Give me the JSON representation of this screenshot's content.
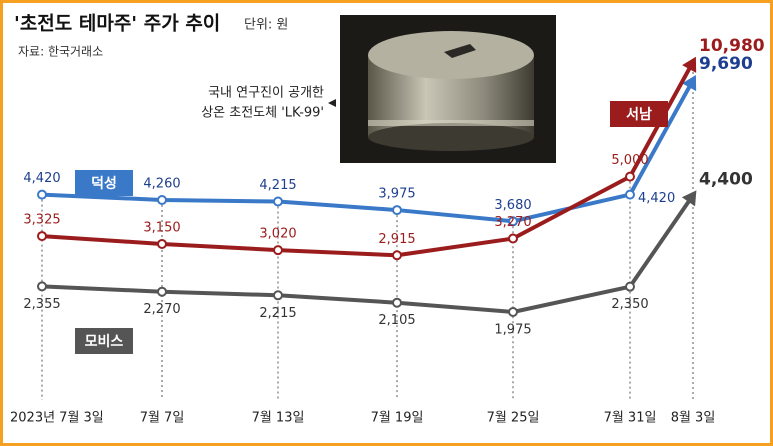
{
  "chart_data": {
    "type": "line",
    "title": "'초전도 테마주' 주가 추이",
    "unit": "단위: 원",
    "source": "자료: 한국거래소",
    "annotation": [
      "국내 연구진이 공개한",
      "상온 초전도체 'LK-99'"
    ],
    "categories": [
      "2023년 7월 3일",
      "7월 7일",
      "7월 13일",
      "7월 19일",
      "7월 25일",
      "7월 31일",
      "8월 3일"
    ],
    "series": [
      {
        "name": "덕성",
        "color": "#3a78c8",
        "label_color": "#1e3f8f",
        "values": [
          4420,
          4260,
          4215,
          3975,
          3680,
          4420,
          9690
        ],
        "value_labels": [
          "4,420",
          "4,260",
          "4,215",
          "3,975",
          "3,680",
          "4,420",
          "9,690"
        ]
      },
      {
        "name": "서남",
        "color": "#9b1c1c",
        "label_color": "#9b1c1c",
        "values": [
          3325,
          3150,
          3020,
          2915,
          3270,
          5000,
          10980
        ],
        "value_labels": [
          "3,325",
          "3,150",
          "3,020",
          "2,915",
          "3,270",
          "5,000",
          "10,980"
        ]
      },
      {
        "name": "모비스",
        "color": "#555555",
        "label_color": "#333333",
        "values": [
          2355,
          2270,
          2215,
          2105,
          1975,
          2350,
          4400
        ],
        "value_labels": [
          "2,355",
          "2,270",
          "2,215",
          "2,105",
          "1,975",
          "2,350",
          "4,400"
        ]
      }
    ]
  }
}
